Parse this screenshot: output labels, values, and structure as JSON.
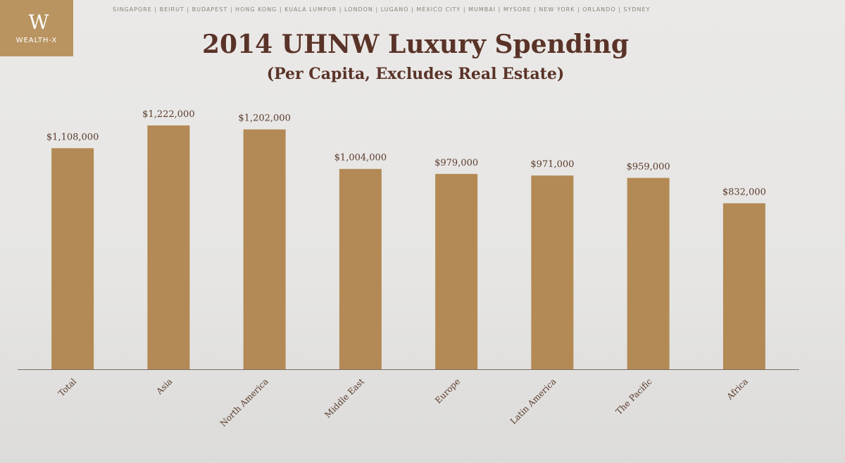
{
  "logo": {
    "mark": "W",
    "text": "WEALTH-X"
  },
  "header": {
    "cities": "SINGAPORE | BEIRUT | BUDAPEST | HONG KONG | KUALA LUMPUR | LONDON | LUGANO | MÉXICO CITY | MUMBAI | MYSORE | NEW YORK | ORLANDO | SYDNEY"
  },
  "colors": {
    "bar": "#b38a55",
    "title": "#5a3328",
    "logo_bg": "#b99461"
  },
  "chart_data": {
    "type": "bar",
    "title": "2014 UHNW Luxury Spending",
    "subtitle": "(Per Capita, Excludes Real Estate)",
    "categories": [
      "Total",
      "Asia",
      "North America",
      "Middle East",
      "Europe",
      "Latin America",
      "The Pacific",
      "Africa"
    ],
    "values": [
      1108000,
      1222000,
      1202000,
      1004000,
      979000,
      971000,
      959000,
      832000
    ],
    "value_labels": [
      "$1,108,000",
      "$1,222,000",
      "$1,202,000",
      "$1,004,000",
      "$979,000",
      "$971,000",
      "$959,000",
      "$832,000"
    ],
    "xlabel": "",
    "ylabel": "",
    "grid": false,
    "legend": "none"
  }
}
